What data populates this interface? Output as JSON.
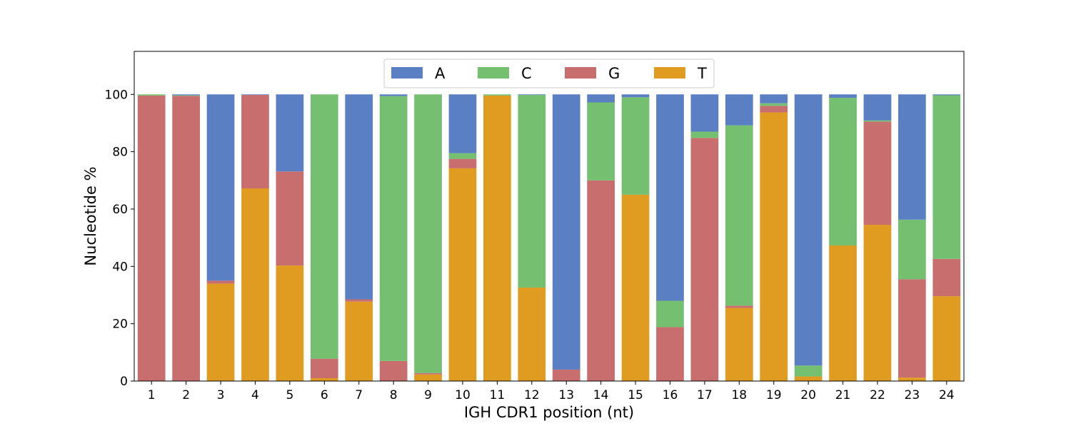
{
  "chart_data": {
    "type": "bar",
    "stacked": true,
    "title": "",
    "xlabel": "IGH CDR1 position (nt)",
    "ylabel": "Nucleotide %",
    "categories": [
      "1",
      "2",
      "3",
      "4",
      "5",
      "6",
      "7",
      "8",
      "9",
      "10",
      "11",
      "12",
      "13",
      "14",
      "15",
      "16",
      "17",
      "18",
      "19",
      "20",
      "21",
      "22",
      "23",
      "24"
    ],
    "ylim": [
      0,
      115
    ],
    "yticks": [
      "0",
      "20",
      "40",
      "60",
      "80",
      "100"
    ],
    "grid": false,
    "legend": {
      "placement": "top-center",
      "columns": 4
    },
    "series": [
      {
        "name": "T",
        "color": "#e09c20",
        "values": [
          0,
          0,
          34,
          67.2,
          40.3,
          1,
          27.7,
          0,
          2.3,
          74.2,
          99.6,
          32.6,
          0,
          0,
          65,
          0,
          0,
          25.5,
          93.7,
          1.6,
          47.3,
          54.5,
          1.2,
          29.6
        ]
      },
      {
        "name": "G",
        "color": "#c86e6e",
        "values": [
          99.6,
          99.5,
          1,
          32.6,
          32.8,
          6.8,
          0.8,
          7,
          0.5,
          3.3,
          0,
          0,
          4,
          70,
          0,
          18.8,
          84.8,
          0.8,
          2.3,
          0,
          0,
          36,
          34.3,
          13
        ]
      },
      {
        "name": "C",
        "color": "#75bf70",
        "values": [
          0.4,
          0.2,
          0,
          0,
          0,
          92.2,
          0,
          92.4,
          97.2,
          2,
          0.4,
          67.2,
          0,
          27.2,
          34,
          9.2,
          2.2,
          62.9,
          0.9,
          3.8,
          51.5,
          0.4,
          20.8,
          57.1
        ]
      },
      {
        "name": "A",
        "color": "#5b7fc3",
        "values": [
          0,
          0.3,
          65,
          0.2,
          26.9,
          0,
          71.5,
          0.6,
          0,
          20.5,
          0,
          0.2,
          96,
          2.8,
          1,
          72,
          13,
          10.8,
          3.1,
          94.6,
          1.2,
          9.1,
          43.7,
          0.3
        ]
      }
    ],
    "legend_order": [
      "A",
      "C",
      "G",
      "T"
    ]
  }
}
